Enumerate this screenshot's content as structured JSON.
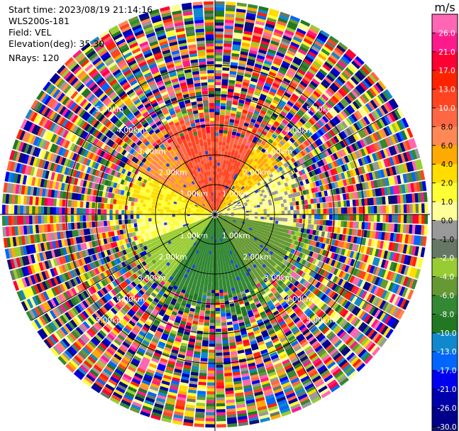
{
  "header": {
    "start_time": "Start time: 2023/08/19 21:14:16",
    "instrument": "WLS200s-181",
    "field": "Field: VEL",
    "elevation": "Elevation(deg): 35.30",
    "nrays": "NRays: 120"
  },
  "chart_data": {
    "type": "heatmap",
    "subtype": "polar-ppi",
    "field": "VEL",
    "nrays": 120,
    "range_rings_km": [
      1,
      2,
      3,
      4,
      5
    ],
    "ring_labels": [
      "1.00km",
      "2.00km",
      "3.00km",
      "4.00km",
      "5.00km"
    ],
    "clean_data_radius_km": 2.9,
    "max_range_km": 7.1,
    "azimuth_sectors": [
      {
        "from_deg": 270,
        "to_deg": 300,
        "velocity_ms": 2.0
      },
      {
        "from_deg": 300,
        "to_deg": 330,
        "velocity_ms": 6.0
      },
      {
        "from_deg": 330,
        "to_deg": 30,
        "velocity_ms": 10.0
      },
      {
        "from_deg": 30,
        "to_deg": 55,
        "velocity_ms": 4.0
      },
      {
        "from_deg": 55,
        "to_deg": 100,
        "velocity_ms": 0.5
      },
      {
        "from_deg": 100,
        "to_deg": 150,
        "velocity_ms": -5.0
      },
      {
        "from_deg": 150,
        "to_deg": 215,
        "velocity_ms": -7.0
      },
      {
        "from_deg": 215,
        "to_deg": 250,
        "velocity_ms": -3.0
      },
      {
        "from_deg": 250,
        "to_deg": 270,
        "velocity_ms": 1.0
      }
    ],
    "colorbar": {
      "unit": "m/s",
      "ticks": [
        "26.0",
        "21.0",
        "17.0",
        "13.0",
        "10.0",
        "8.0",
        "6.0",
        "4.0",
        "2.0",
        "1.0",
        "0.0",
        "-1.0",
        "-2.0",
        "-4.0",
        "-6.0",
        "-8.0",
        "-10.0",
        "-13.0",
        "-17.0",
        "-21.0",
        "-26.0",
        "-30.0"
      ],
      "colors": [
        "#ff66b4",
        "#ff1a8c",
        "#ff0033",
        "#ff2200",
        "#ff4422",
        "#ff6644",
        "#ff8855",
        "#ffaa00",
        "#ffdd00",
        "#ffff33",
        "#ffff99",
        "#999999",
        "#667766",
        "#99cc33",
        "#669933",
        "#338833",
        "#227722",
        "#1188cc",
        "#0066ff",
        "#0000ee",
        "#0000aa",
        "#000088",
        "#11116a"
      ]
    }
  }
}
